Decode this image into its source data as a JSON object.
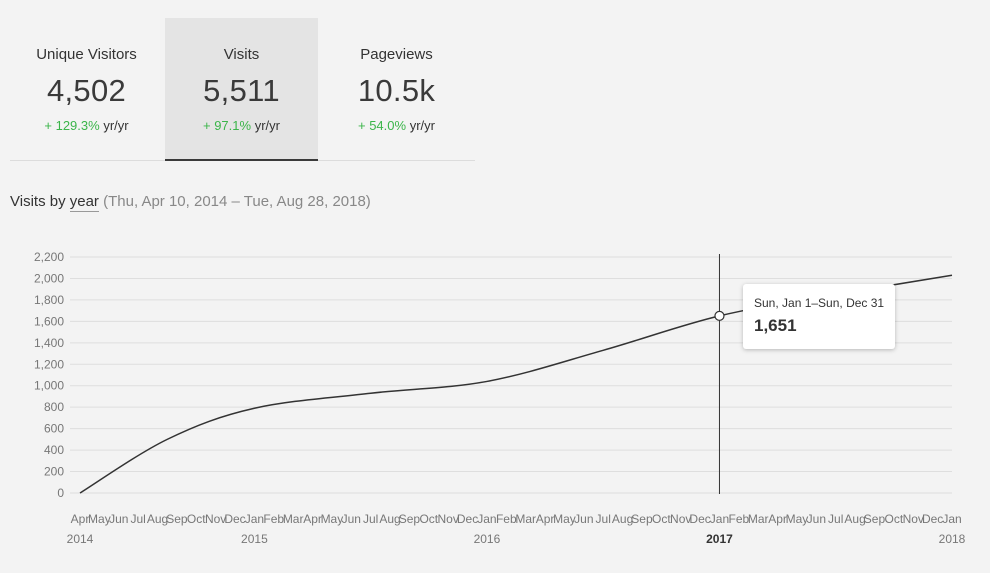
{
  "stats": [
    {
      "label": "Unique Visitors",
      "value": "4,502",
      "change_pct": "+ 129.3%",
      "change_unit": "yr/yr"
    },
    {
      "label": "Visits",
      "value": "5,511",
      "change_pct": "+ 97.1%",
      "change_unit": "yr/yr",
      "selected": true
    },
    {
      "label": "Pageviews",
      "value": "10.5k",
      "change_pct": "+ 54.0%",
      "change_unit": "yr/yr"
    }
  ],
  "heading": {
    "prefix": "Visits by",
    "period": "year",
    "range": "(Thu, Apr 10, 2014 – Tue, Aug 28, 2018)"
  },
  "tooltip": {
    "label": "Sun, Jan 1–Sun, Dec 31",
    "value": "1,651"
  },
  "colors": {
    "positive_change": "#3bb54a",
    "line": "#333333",
    "selected_tab_bg": "#e4e4e4"
  },
  "chart_data": {
    "type": "line",
    "title": "",
    "xlabel": "",
    "ylabel": "",
    "ylim": [
      0,
      2200
    ],
    "y_ticks": [
      0,
      200,
      400,
      600,
      800,
      1000,
      1200,
      1400,
      1600,
      1800,
      2000,
      2200
    ],
    "y_tick_labels": [
      "0",
      "200",
      "400",
      "600",
      "800",
      "1,000",
      "1,200",
      "1,400",
      "1,600",
      "1,800",
      "2,000",
      "2,200"
    ],
    "grid": true,
    "month_labels": [
      "Apr",
      "May",
      "Jun",
      "Jul",
      "Aug",
      "Sep",
      "Oct",
      "Nov",
      "Dec",
      "Jan",
      "Feb",
      "Mar",
      "Apr",
      "May",
      "Jun",
      "Jul",
      "Aug",
      "Sep",
      "Oct",
      "Nov",
      "Dec",
      "Jan",
      "Feb",
      "Mar",
      "Apr",
      "May",
      "Jun",
      "Jul",
      "Aug",
      "Sep",
      "Oct",
      "Nov",
      "Dec",
      "Jan",
      "Feb",
      "Mar",
      "Apr",
      "May",
      "Jun",
      "Jul",
      "Aug",
      "Sep",
      "Oct",
      "Nov",
      "Dec",
      "Jan"
    ],
    "year_labels": [
      {
        "label": "2014",
        "month_index": 0
      },
      {
        "label": "2015",
        "month_index": 9
      },
      {
        "label": "2016",
        "month_index": 21
      },
      {
        "label": "2017",
        "month_index": 33,
        "highlight": true
      },
      {
        "label": "2018",
        "month_index": 45
      }
    ],
    "series": [
      {
        "values": [
          {
            "month_index": 0,
            "y": 0
          },
          {
            "month_index": 4.5,
            "y": 500
          },
          {
            "month_index": 9,
            "y": 790
          },
          {
            "month_index": 15,
            "y": 930
          },
          {
            "month_index": 21,
            "y": 1040
          },
          {
            "month_index": 27,
            "y": 1330
          },
          {
            "month_index": 33,
            "y": 1651
          },
          {
            "month_index": 39,
            "y": 1850
          },
          {
            "month_index": 45,
            "y": 2030
          }
        ]
      }
    ],
    "hover_month_index": 33
  }
}
